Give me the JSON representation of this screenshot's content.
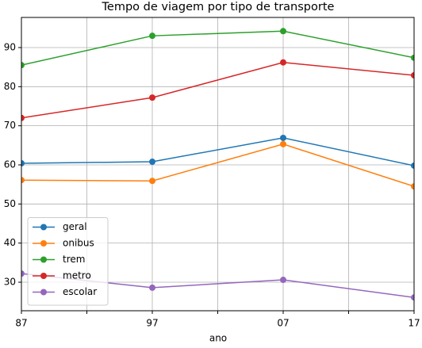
{
  "chart_data": {
    "type": "line",
    "title": "Tempo de viagem por tipo de transporte",
    "xlabel": "ano",
    "categories": [
      "87",
      "97",
      "07",
      "17"
    ],
    "x": [
      0,
      1,
      2,
      3
    ],
    "xlim": [
      0,
      3
    ],
    "xticks": [
      {
        "value": 0,
        "label": "87"
      },
      {
        "value": 0.5,
        "label": null
      },
      {
        "value": 1,
        "label": "97"
      },
      {
        "value": 1.5,
        "label": null
      },
      {
        "value": 2,
        "label": "07"
      },
      {
        "value": 2.5,
        "label": null
      },
      {
        "value": 3,
        "label": "17"
      }
    ],
    "ylim": [
      22.7,
      97.7
    ],
    "yticks": [
      30,
      40,
      50,
      60,
      70,
      80,
      90
    ],
    "grid": true,
    "legend": "lower left",
    "series": [
      {
        "name": "geral",
        "color": "#1f77b4",
        "values": [
          60.4,
          60.8,
          66.9,
          59.8
        ]
      },
      {
        "name": "onibus",
        "color": "#ff7f0e",
        "values": [
          56.1,
          55.9,
          65.3,
          54.5
        ]
      },
      {
        "name": "trem",
        "color": "#2ca02c",
        "values": [
          85.5,
          93.0,
          94.2,
          87.4
        ]
      },
      {
        "name": "metro",
        "color": "#d62728",
        "values": [
          72.0,
          77.2,
          86.2,
          82.9
        ]
      },
      {
        "name": "escolar",
        "color": "#9467bd",
        "values": [
          32.2,
          28.6,
          30.6,
          26.1
        ]
      }
    ]
  }
}
